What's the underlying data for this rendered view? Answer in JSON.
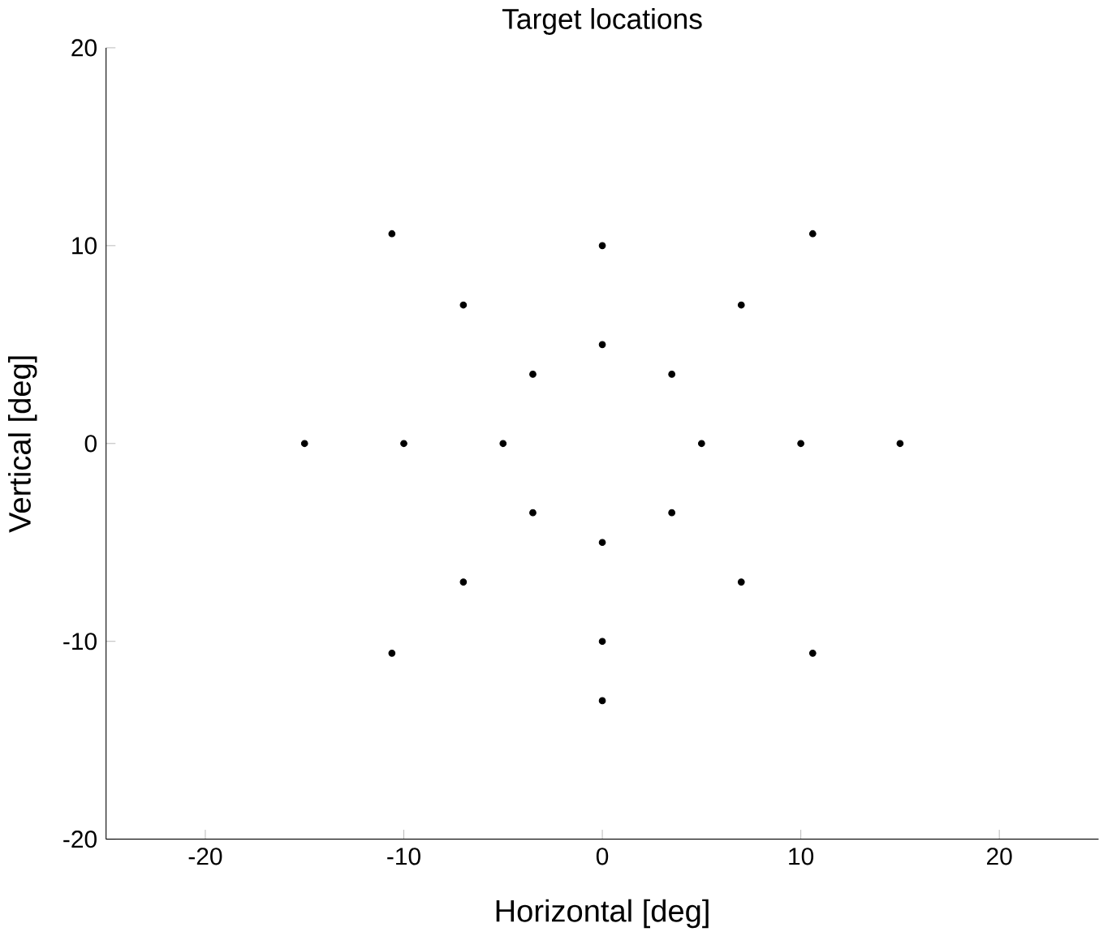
{
  "chart_data": {
    "type": "scatter",
    "title": "Target locations",
    "xlabel": "Horizontal [deg]",
    "ylabel": "Vertical [deg]",
    "x": [
      0,
      3.5,
      5,
      3.5,
      0,
      -3.5,
      -5,
      -3.5,
      0,
      7,
      10,
      7,
      0,
      -7,
      -10,
      -7,
      10.6,
      15,
      10.6,
      0,
      -10.6,
      -15,
      -10.6
    ],
    "values": [
      5,
      3.5,
      0,
      -3.5,
      -5,
      -3.5,
      0,
      3.5,
      10,
      7,
      0,
      -7,
      -10,
      -7,
      0,
      7,
      10.6,
      0,
      -10.6,
      -13,
      -10.6,
      0,
      10.6
    ],
    "color": "#000000",
    "marker": "circle",
    "xlim": [
      -25,
      25
    ],
    "ylim": [
      -20,
      20
    ],
    "xticks": [
      -20,
      -10,
      0,
      10,
      20
    ],
    "yticks": [
      -20,
      -10,
      0,
      10,
      20
    ]
  }
}
